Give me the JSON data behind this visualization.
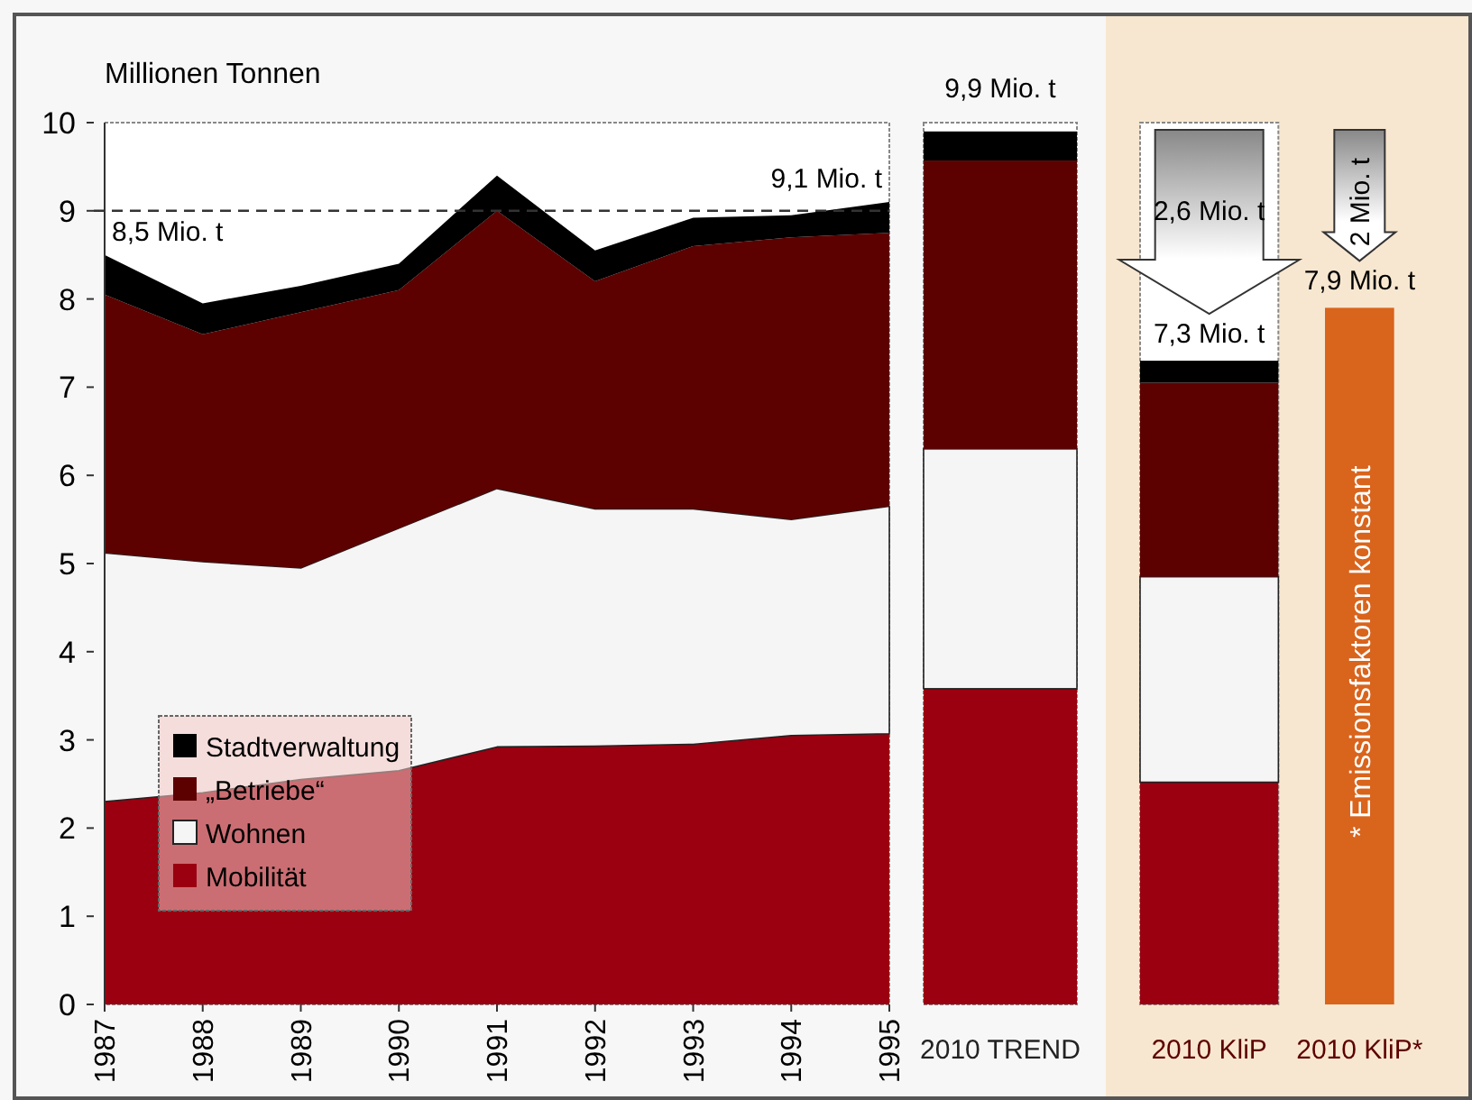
{
  "chart_data": [
    {
      "type": "area",
      "stacked": true,
      "ylabel": "Millionen Tonnen",
      "x": [
        1987,
        1988,
        1989,
        1990,
        1991,
        1992,
        1993,
        1994,
        1995
      ],
      "xlim": [
        1987,
        1995
      ],
      "xticks": [
        1987,
        1988,
        1989,
        1990,
        1991,
        1992,
        1993,
        1994,
        1995
      ],
      "ylim": [
        0,
        10
      ],
      "yticks": [
        0,
        1,
        2,
        3,
        4,
        5,
        6,
        7,
        8,
        9,
        10
      ],
      "legend": "bottom left",
      "grid": false,
      "series": [
        {
          "name": "Mobilität",
          "color": "#9a0010",
          "values": [
            2.3,
            2.4,
            2.55,
            2.65,
            2.92,
            2.93,
            2.95,
            3.05,
            3.07
          ]
        },
        {
          "name": "Wohnen",
          "color": "#f5f5f5",
          "values": [
            2.82,
            2.62,
            2.4,
            2.75,
            2.93,
            2.69,
            2.67,
            2.45,
            2.58
          ]
        },
        {
          "name": "„Betriebe“",
          "color": "#5c0000",
          "values": [
            2.93,
            2.58,
            2.9,
            2.7,
            3.15,
            2.58,
            2.98,
            3.2,
            3.1
          ]
        },
        {
          "name": "Stadtverwaltung",
          "color": "#000000",
          "values": [
            0.45,
            0.35,
            0.3,
            0.3,
            0.4,
            0.35,
            0.32,
            0.25,
            0.35
          ]
        }
      ],
      "ref_lines": [
        {
          "axis": "y",
          "value": 9,
          "line_style": "dashed",
          "color": "#333333"
        }
      ],
      "annotations": [
        {
          "text": "8,5 Mio. t",
          "x": 1987,
          "y": 8.5
        },
        {
          "text": "9,1 Mio. t",
          "x": 1995,
          "y": 9.1
        }
      ]
    },
    {
      "type": "bar",
      "stacked": true,
      "categories": [
        "2010 TREND"
      ],
      "ylim": [
        0,
        10
      ],
      "tick_labels": "x",
      "series": [
        {
          "color": "#9a0010",
          "values": [
            3.58
          ]
        },
        {
          "color": "#f5f5f5",
          "values": [
            2.72
          ]
        },
        {
          "color": "#5c0000",
          "values": [
            3.27
          ]
        },
        {
          "color": "#000000",
          "values": [
            0.33
          ]
        }
      ],
      "totals": [
        "9,9 Mio. t"
      ]
    },
    {
      "type": "bar",
      "stacked": true,
      "categories": [
        "2010 KliP",
        "2010 KliP*"
      ],
      "ylim": [
        0,
        10
      ],
      "tick_labels": "x",
      "series": [
        {
          "color": "#9a0010",
          "values": [
            2.52,
            null
          ]
        },
        {
          "color": "#f5f5f5",
          "values": [
            2.33,
            null
          ]
        },
        {
          "color": "#5c0000",
          "values": [
            2.2,
            null
          ]
        },
        {
          "color": "#000000",
          "values": [
            0.25,
            null
          ]
        },
        {
          "color": "#d9641c",
          "values": [
            null,
            7.9
          ]
        }
      ],
      "totals": [
        "7,3 Mio. t",
        "7,9 Mio. t"
      ],
      "annotations": [
        "2,6 Mio. t",
        "2 Mio. t",
        "* Emissionsfaktoren konstant"
      ]
    }
  ]
}
